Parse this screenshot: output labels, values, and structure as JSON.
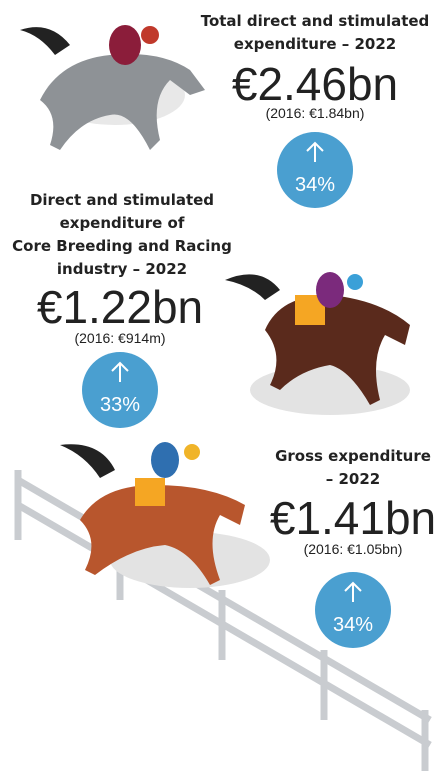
{
  "stats": [
    {
      "title_lines": [
        "Total direct and stimulated",
        "expenditure – 2022"
      ],
      "value": "€2.46bn",
      "previous": "(2016: €1.84bn)",
      "growth": "34%"
    },
    {
      "title_lines": [
        "Direct and stimulated",
        "expenditure of",
        "Core Breeding and Racing",
        "industry – 2022"
      ],
      "value": "€1.22bn",
      "previous": "(2016: €914m)",
      "growth": "33%"
    },
    {
      "title_lines": [
        "Gross expenditure",
        "– 2022"
      ],
      "value": "€1.41bn",
      "previous": "(2016: €1.05bn)",
      "growth": "34%"
    }
  ]
}
